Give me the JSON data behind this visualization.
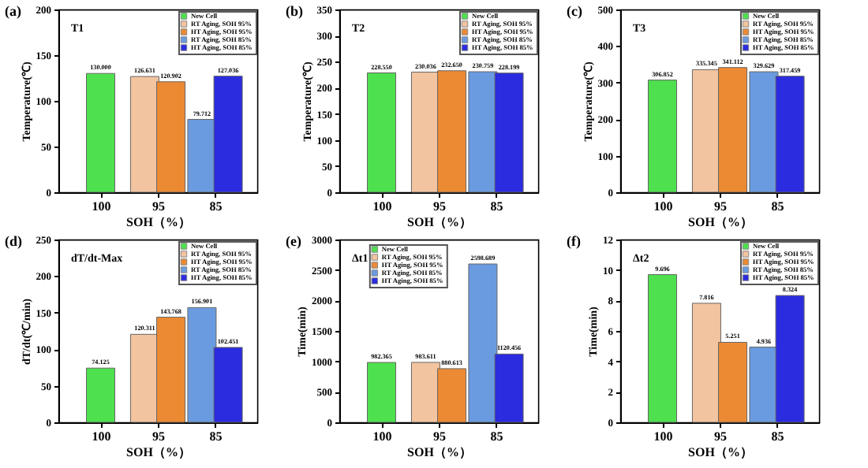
{
  "chart_data": [
    {
      "type": "bar",
      "title": "(a)",
      "annotations": [
        "T1"
      ],
      "xlabel": "SOH（%）",
      "ylabel": "Temperature(℃)",
      "categories": [
        "100",
        "95",
        "85"
      ],
      "ylim": [
        0,
        200
      ],
      "yticks": [
        0,
        50,
        100,
        150,
        200
      ],
      "legend": "top right",
      "series": [
        {
          "name": "New Cell",
          "color": "#4ee04e",
          "values": [
            130.0,
            null,
            null
          ],
          "value_labels": [
            "130.000",
            null,
            null
          ]
        },
        {
          "name": "RT Aging, SOH 95%",
          "color": "#f2c4a0",
          "values": [
            null,
            126.631,
            null
          ],
          "value_labels": [
            null,
            "126.631",
            null
          ]
        },
        {
          "name": "HT Aging, SOH 95%",
          "color": "#ec8a34",
          "values": [
            null,
            120.902,
            null
          ],
          "value_labels": [
            null,
            "120.902",
            null
          ]
        },
        {
          "name": "RT Aging, SOH 85%",
          "color": "#6a9be0",
          "values": [
            null,
            null,
            79.712
          ],
          "value_labels": [
            null,
            null,
            "79.712"
          ]
        },
        {
          "name": "HT Aging, SOH 85%",
          "color": "#2b2be0",
          "values": [
            null,
            null,
            127.036
          ],
          "value_labels": [
            null,
            null,
            "127.036"
          ]
        }
      ]
    },
    {
      "type": "bar",
      "title": "(b)",
      "annotations": [
        "T2"
      ],
      "xlabel": "SOH（%）",
      "ylabel": "Temperature(℃)",
      "categories": [
        "100",
        "95",
        "85"
      ],
      "ylim": [
        0,
        350
      ],
      "yticks": [
        0,
        50,
        100,
        150,
        200,
        250,
        300,
        350
      ],
      "legend": "top right",
      "series": [
        {
          "name": "New Cell",
          "color": "#4ee04e",
          "values": [
            228.55,
            null,
            null
          ],
          "value_labels": [
            "228.550",
            null,
            null
          ]
        },
        {
          "name": "RT Aging, SOH 95%",
          "color": "#f2c4a0",
          "values": [
            null,
            230.036,
            null
          ],
          "value_labels": [
            null,
            "230.036",
            null
          ]
        },
        {
          "name": "HT Aging, SOH 95%",
          "color": "#ec8a34",
          "values": [
            null,
            232.65,
            null
          ],
          "value_labels": [
            null,
            "232.650",
            null
          ]
        },
        {
          "name": "RT Aging, SOH 85%",
          "color": "#6a9be0",
          "values": [
            null,
            null,
            230.759
          ],
          "value_labels": [
            null,
            null,
            "230.759"
          ]
        },
        {
          "name": "HT Aging, SOH 85%",
          "color": "#2b2be0",
          "values": [
            null,
            null,
            228.199
          ],
          "value_labels": [
            null,
            null,
            "228.199"
          ]
        }
      ]
    },
    {
      "type": "bar",
      "title": "(c)",
      "annotations": [
        "T3"
      ],
      "xlabel": "SOH（%）",
      "ylabel": "Temperature(℃)",
      "categories": [
        "100",
        "95",
        "85"
      ],
      "ylim": [
        0,
        500
      ],
      "yticks": [
        0,
        100,
        200,
        300,
        400,
        500
      ],
      "legend": "top right",
      "series": [
        {
          "name": "New Cell",
          "color": "#4ee04e",
          "values": [
            306.852,
            null,
            null
          ],
          "value_labels": [
            "306.852",
            null,
            null
          ]
        },
        {
          "name": "RT Aging, SOH 95%",
          "color": "#f2c4a0",
          "values": [
            null,
            335.345,
            null
          ],
          "value_labels": [
            null,
            "335.345",
            null
          ]
        },
        {
          "name": "HT Aging, SOH 95%",
          "color": "#ec8a34",
          "values": [
            null,
            341.112,
            null
          ],
          "value_labels": [
            null,
            "341.112",
            null
          ]
        },
        {
          "name": "RT Aging, SOH 85%",
          "color": "#6a9be0",
          "values": [
            null,
            null,
            329.629
          ],
          "value_labels": [
            null,
            null,
            "329.629"
          ]
        },
        {
          "name": "HT Aging, SOH 85%",
          "color": "#2b2be0",
          "values": [
            null,
            null,
            317.459
          ],
          "value_labels": [
            null,
            null,
            "317.459"
          ]
        }
      ]
    },
    {
      "type": "bar",
      "title": "(d)",
      "annotations": [
        "dT/dt-Max"
      ],
      "xlabel": "SOH（%）",
      "ylabel": "dT/dt(℃/min)",
      "categories": [
        "100",
        "95",
        "85"
      ],
      "ylim": [
        0,
        250
      ],
      "yticks": [
        0,
        50,
        100,
        150,
        200,
        250
      ],
      "legend": "top right",
      "series": [
        {
          "name": "New Cell",
          "color": "#4ee04e",
          "values": [
            74.125,
            null,
            null
          ],
          "value_labels": [
            "74.125",
            null,
            null
          ]
        },
        {
          "name": "RT Aging, SOH 95%",
          "color": "#f2c4a0",
          "values": [
            null,
            120.311,
            null
          ],
          "value_labels": [
            null,
            "120.311",
            null
          ]
        },
        {
          "name": "HT Aging, SOH 95%",
          "color": "#ec8a34",
          "values": [
            null,
            143.768,
            null
          ],
          "value_labels": [
            null,
            "143.768",
            null
          ]
        },
        {
          "name": "RT Aging, SOH 85%",
          "color": "#6a9be0",
          "values": [
            null,
            null,
            156.901
          ],
          "value_labels": [
            null,
            null,
            "156.901"
          ]
        },
        {
          "name": "HT Aging, SOH 85%",
          "color": "#2b2be0",
          "values": [
            null,
            null,
            102.451
          ],
          "value_labels": [
            null,
            null,
            "102.451"
          ]
        }
      ]
    },
    {
      "type": "bar",
      "title": "(e)",
      "annotations": [
        "Δt1"
      ],
      "xlabel": "SOH（%）",
      "ylabel": "Time(min)",
      "categories": [
        "100",
        "95",
        "85"
      ],
      "ylim": [
        0,
        3000
      ],
      "yticks": [
        0,
        500,
        1000,
        1500,
        2000,
        2500,
        3000
      ],
      "legend": "top",
      "series": [
        {
          "name": "New Cell",
          "color": "#4ee04e",
          "values": [
            982.365,
            null,
            null
          ],
          "value_labels": [
            "982.365",
            null,
            null
          ]
        },
        {
          "name": "RT Aging, SOH 95%",
          "color": "#f2c4a0",
          "values": [
            null,
            983.611,
            null
          ],
          "value_labels": [
            null,
            "983.611",
            null
          ]
        },
        {
          "name": "HT Aging, SOH 95%",
          "color": "#ec8a34",
          "values": [
            null,
            880.613,
            null
          ],
          "value_labels": [
            null,
            "880.613",
            null
          ]
        },
        {
          "name": "RT Aging, SOH 85%",
          "color": "#6a9be0",
          "values": [
            null,
            null,
            2598.689
          ],
          "value_labels": [
            null,
            null,
            "2598.689"
          ]
        },
        {
          "name": "HT Aging, SOH 85%",
          "color": "#2b2be0",
          "values": [
            null,
            null,
            1120.456
          ],
          "value_labels": [
            null,
            null,
            "1120.456"
          ]
        }
      ]
    },
    {
      "type": "bar",
      "title": "(f)",
      "annotations": [
        "Δt2"
      ],
      "xlabel": "SOH（%）",
      "ylabel": "Time(min)",
      "categories": [
        "100",
        "95",
        "85"
      ],
      "ylim": [
        0,
        12
      ],
      "yticks": [
        0,
        2,
        4,
        6,
        8,
        10,
        12
      ],
      "legend": "top right",
      "series": [
        {
          "name": "New Cell",
          "color": "#4ee04e",
          "values": [
            9.696,
            null,
            null
          ],
          "value_labels": [
            "9.696",
            null,
            null
          ]
        },
        {
          "name": "RT Aging, SOH 95%",
          "color": "#f2c4a0",
          "values": [
            null,
            7.816,
            null
          ],
          "value_labels": [
            null,
            "7.816",
            null
          ]
        },
        {
          "name": "HT Aging, SOH 95%",
          "color": "#ec8a34",
          "values": [
            null,
            5.251,
            null
          ],
          "value_labels": [
            null,
            "5.251",
            null
          ]
        },
        {
          "name": "RT Aging, SOH 85%",
          "color": "#6a9be0",
          "values": [
            null,
            null,
            4.936
          ],
          "value_labels": [
            null,
            null,
            "4.936"
          ]
        },
        {
          "name": "HT Aging, SOH 85%",
          "color": "#2b2be0",
          "values": [
            null,
            null,
            8.324
          ],
          "value_labels": [
            null,
            null,
            "8.324"
          ]
        }
      ]
    }
  ]
}
